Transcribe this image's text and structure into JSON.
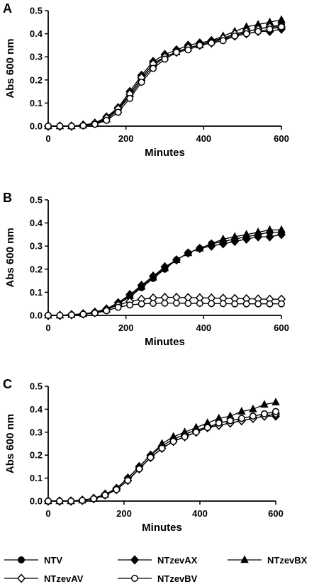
{
  "figure": {
    "legend": [
      {
        "name": "NTV",
        "marker": "filled-circle"
      },
      {
        "name": "NTzevAX",
        "marker": "filled-diamond"
      },
      {
        "name": "NTzevBX",
        "marker": "filled-triangle"
      },
      {
        "name": "NTzevAV",
        "marker": "open-diamond"
      },
      {
        "name": "NTzevBV",
        "marker": "open-circle"
      }
    ],
    "legend_placement": "bottom"
  },
  "chart_data": [
    {
      "type": "line",
      "panel": "A",
      "xlabel": "Minutes",
      "ylabel": "Abs 600 nm",
      "xlim": [
        0,
        600
      ],
      "ylim": [
        0,
        0.5
      ],
      "xticks": [
        0,
        200,
        400,
        600
      ],
      "yticks": [
        0.0,
        0.1,
        0.2,
        0.3,
        0.4,
        0.5
      ],
      "grid": false,
      "x": [
        0,
        30,
        60,
        90,
        120,
        150,
        180,
        210,
        240,
        270,
        300,
        330,
        360,
        390,
        420,
        450,
        480,
        510,
        540,
        570,
        600
      ],
      "series": [
        {
          "name": "NTV",
          "marker": "filled-circle",
          "values": [
            0.0,
            0.0,
            0.0,
            0.003,
            0.01,
            0.03,
            0.07,
            0.13,
            0.2,
            0.26,
            0.3,
            0.32,
            0.34,
            0.35,
            0.36,
            0.38,
            0.39,
            0.41,
            0.42,
            0.43,
            0.44
          ]
        },
        {
          "name": "NTzevAX",
          "marker": "filled-diamond",
          "values": [
            0.0,
            0.0,
            0.0,
            0.005,
            0.013,
            0.04,
            0.08,
            0.15,
            0.22,
            0.28,
            0.31,
            0.33,
            0.35,
            0.36,
            0.37,
            0.38,
            0.39,
            0.4,
            0.41,
            0.41,
            0.42
          ]
        },
        {
          "name": "NTzevBX",
          "marker": "filled-triangle",
          "values": [
            0.0,
            0.0,
            0.0,
            0.003,
            0.01,
            0.03,
            0.07,
            0.14,
            0.21,
            0.27,
            0.3,
            0.32,
            0.34,
            0.35,
            0.37,
            0.39,
            0.41,
            0.43,
            0.44,
            0.45,
            0.46
          ]
        },
        {
          "name": "NTzevAV",
          "marker": "open-diamond",
          "values": [
            0.0,
            0.0,
            0.0,
            0.004,
            0.012,
            0.035,
            0.075,
            0.14,
            0.21,
            0.27,
            0.3,
            0.32,
            0.34,
            0.35,
            0.36,
            0.38,
            0.4,
            0.41,
            0.42,
            0.43,
            0.43
          ]
        },
        {
          "name": "NTzevBV",
          "marker": "open-circle",
          "values": [
            0.0,
            0.0,
            0.0,
            0.002,
            0.008,
            0.025,
            0.06,
            0.12,
            0.19,
            0.25,
            0.29,
            0.32,
            0.33,
            0.35,
            0.36,
            0.37,
            0.39,
            0.4,
            0.41,
            0.42,
            0.43
          ]
        }
      ]
    },
    {
      "type": "line",
      "panel": "B",
      "xlabel": "Minutes",
      "ylabel": "Abs 600 nm",
      "xlim": [
        0,
        600
      ],
      "ylim": [
        0,
        0.5
      ],
      "xticks": [
        0,
        200,
        400,
        600
      ],
      "yticks": [
        0.0,
        0.1,
        0.2,
        0.3,
        0.4,
        0.5
      ],
      "grid": false,
      "x": [
        0,
        30,
        60,
        90,
        120,
        150,
        180,
        210,
        240,
        270,
        300,
        330,
        360,
        390,
        420,
        450,
        480,
        510,
        540,
        570,
        600
      ],
      "series": [
        {
          "name": "NTV",
          "marker": "filled-circle",
          "values": [
            0.0,
            0.0,
            0.003,
            0.006,
            0.012,
            0.025,
            0.05,
            0.08,
            0.12,
            0.16,
            0.2,
            0.24,
            0.27,
            0.29,
            0.31,
            0.32,
            0.33,
            0.34,
            0.35,
            0.36,
            0.36
          ]
        },
        {
          "name": "NTzevAX",
          "marker": "filled-diamond",
          "values": [
            0.0,
            0.0,
            0.003,
            0.007,
            0.014,
            0.028,
            0.055,
            0.09,
            0.13,
            0.17,
            0.21,
            0.24,
            0.27,
            0.29,
            0.3,
            0.31,
            0.32,
            0.33,
            0.34,
            0.34,
            0.35
          ]
        },
        {
          "name": "NTzevBX",
          "marker": "filled-triangle",
          "values": [
            0.0,
            0.0,
            0.003,
            0.006,
            0.012,
            0.025,
            0.05,
            0.085,
            0.125,
            0.165,
            0.205,
            0.24,
            0.27,
            0.29,
            0.31,
            0.33,
            0.34,
            0.35,
            0.36,
            0.37,
            0.37
          ]
        },
        {
          "name": "NTzevAV",
          "marker": "open-diamond",
          "values": [
            0.0,
            0.0,
            0.003,
            0.006,
            0.012,
            0.025,
            0.045,
            0.06,
            0.07,
            0.075,
            0.078,
            0.078,
            0.077,
            0.076,
            0.075,
            0.074,
            0.073,
            0.072,
            0.071,
            0.07,
            0.07
          ]
        },
        {
          "name": "NTzevBV",
          "marker": "open-circle",
          "values": [
            0.0,
            0.0,
            0.002,
            0.005,
            0.01,
            0.02,
            0.035,
            0.045,
            0.05,
            0.052,
            0.053,
            0.053,
            0.052,
            0.052,
            0.051,
            0.051,
            0.05,
            0.05,
            0.05,
            0.05,
            0.05
          ]
        }
      ]
    },
    {
      "type": "line",
      "panel": "C",
      "xlabel": "Minutes",
      "ylabel": "Abs 600 nm",
      "xlim": [
        0,
        600
      ],
      "ylim": [
        0,
        0.5
      ],
      "xticks": [
        0,
        200,
        400,
        600
      ],
      "yticks": [
        0.0,
        0.1,
        0.2,
        0.3,
        0.4,
        0.5
      ],
      "grid": false,
      "x": [
        0,
        30,
        60,
        90,
        120,
        150,
        180,
        210,
        240,
        270,
        300,
        330,
        360,
        390,
        420,
        450,
        480,
        510,
        540,
        570,
        600
      ],
      "series": [
        {
          "name": "NTV",
          "marker": "filled-circle",
          "values": [
            0.0,
            0.0,
            0.0,
            0.003,
            0.01,
            0.025,
            0.05,
            0.09,
            0.14,
            0.19,
            0.23,
            0.26,
            0.28,
            0.3,
            0.32,
            0.34,
            0.35,
            0.36,
            0.37,
            0.38,
            0.39
          ]
        },
        {
          "name": "NTzevAX",
          "marker": "filled-diamond",
          "values": [
            0.0,
            0.0,
            0.0,
            0.004,
            0.012,
            0.03,
            0.055,
            0.1,
            0.15,
            0.2,
            0.24,
            0.27,
            0.29,
            0.31,
            0.32,
            0.33,
            0.34,
            0.35,
            0.36,
            0.37,
            0.37
          ]
        },
        {
          "name": "NTzevBX",
          "marker": "filled-triangle",
          "values": [
            0.0,
            0.0,
            0.0,
            0.003,
            0.01,
            0.028,
            0.055,
            0.1,
            0.15,
            0.2,
            0.25,
            0.28,
            0.3,
            0.32,
            0.34,
            0.36,
            0.37,
            0.39,
            0.4,
            0.42,
            0.43
          ]
        },
        {
          "name": "NTzevAV",
          "marker": "open-diamond",
          "values": [
            0.0,
            0.0,
            0.0,
            0.003,
            0.01,
            0.027,
            0.05,
            0.09,
            0.14,
            0.19,
            0.23,
            0.26,
            0.28,
            0.3,
            0.32,
            0.33,
            0.34,
            0.35,
            0.36,
            0.37,
            0.38
          ]
        },
        {
          "name": "NTzevBV",
          "marker": "open-circle",
          "values": [
            0.0,
            0.0,
            0.0,
            0.003,
            0.01,
            0.026,
            0.05,
            0.09,
            0.14,
            0.19,
            0.23,
            0.26,
            0.28,
            0.3,
            0.32,
            0.34,
            0.35,
            0.36,
            0.37,
            0.38,
            0.39
          ]
        }
      ]
    }
  ]
}
